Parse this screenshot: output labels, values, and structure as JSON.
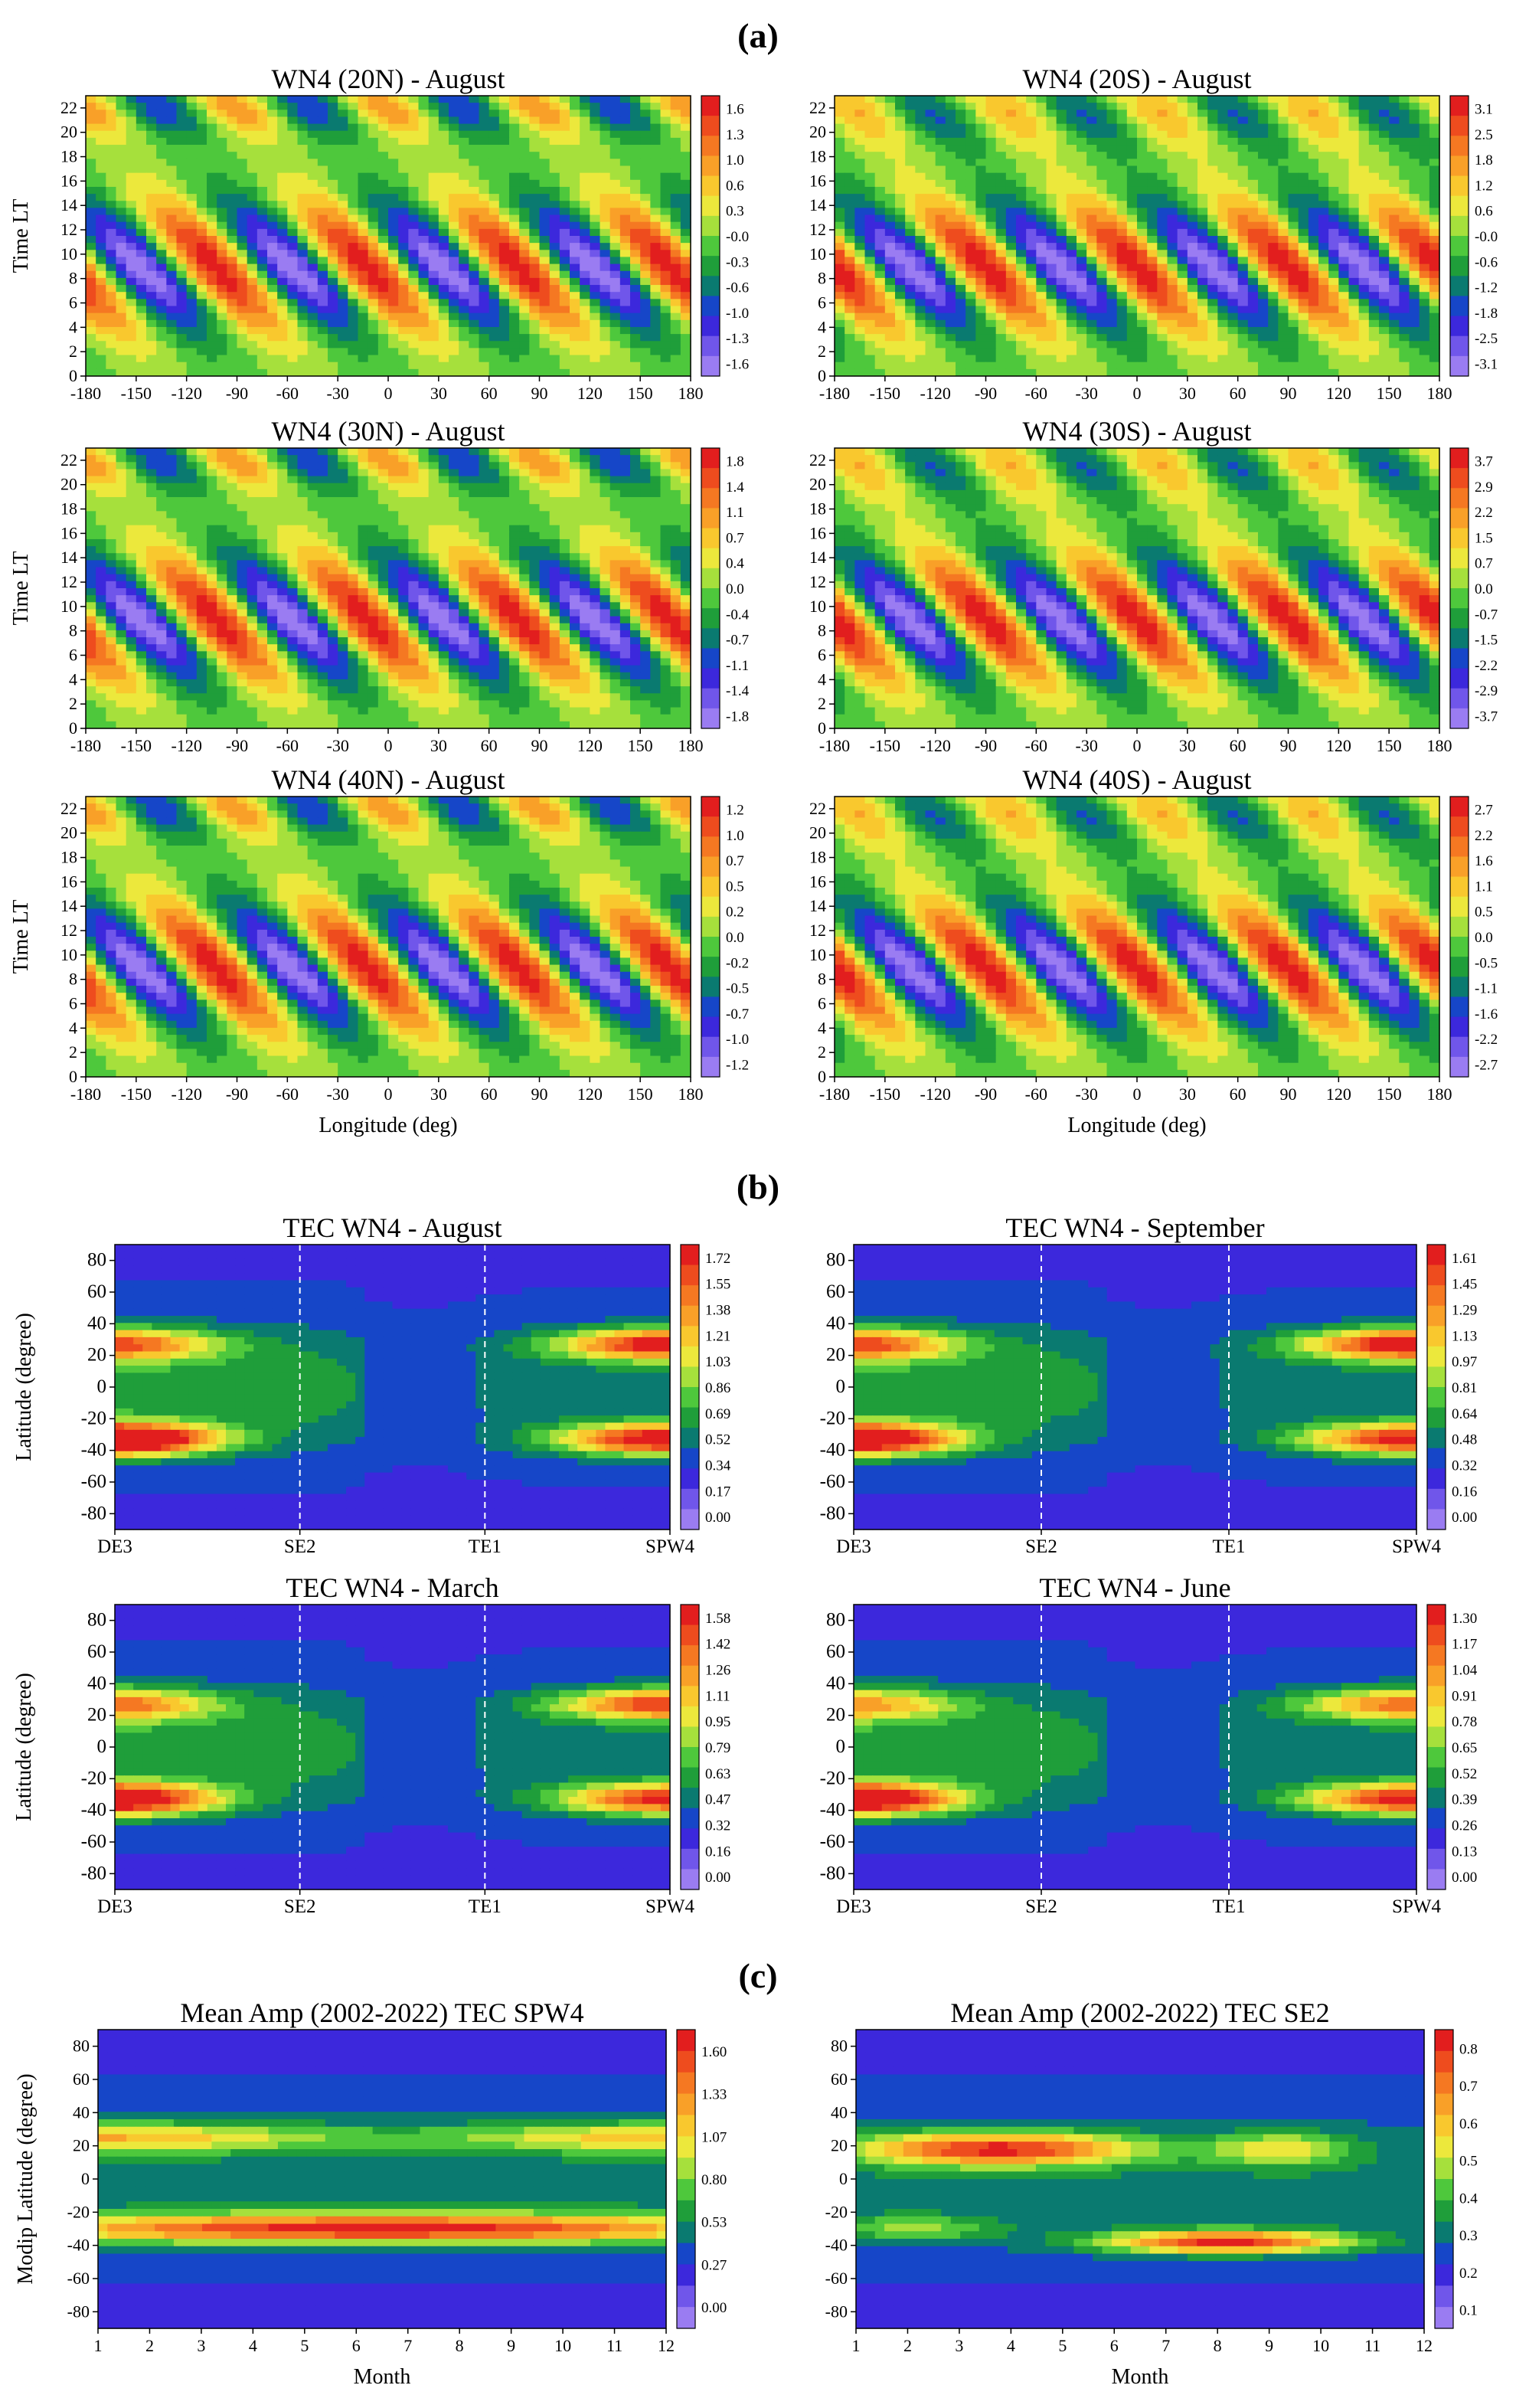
{
  "sections": {
    "a": "(a)",
    "b": "(b)",
    "c": "(c)"
  },
  "palette": [
    "#9a7cf2",
    "#7056ea",
    "#3c28dc",
    "#1646c8",
    "#0a7a70",
    "#1f9e3a",
    "#4ec83c",
    "#a6e03c",
    "#ece83c",
    "#f9c82e",
    "#f9a028",
    "#f57822",
    "#ee4c1e",
    "#e21e1e"
  ],
  "contour_line_color": "#000000",
  "zero_line_color": "#ffffff",
  "chart_data": [
    {
      "id": "a1",
      "type": "heatmap",
      "title": "WN4 (20N) - August",
      "ylabel": "Time LT",
      "xlabel": "",
      "xlim": [
        -180,
        180
      ],
      "ylim": [
        0,
        23
      ],
      "xticks": [
        "-180",
        "-150",
        "-120",
        "-90",
        "-60",
        "-30",
        "0",
        "30",
        "60",
        "90",
        "120",
        "150",
        "180"
      ],
      "yticks": [
        "0",
        "2",
        "4",
        "6",
        "8",
        "10",
        "12",
        "14",
        "16",
        "18",
        "20",
        "22"
      ],
      "colorbar": [
        "1.6",
        "1.3",
        "1.0",
        "0.6",
        "0.3",
        "-0.0",
        "-0.3",
        "-0.6",
        "-1.0",
        "-1.3",
        "-1.6"
      ]
    },
    {
      "id": "a2",
      "type": "heatmap",
      "title": "WN4 (20S) - August",
      "ylabel": "",
      "xlabel": "",
      "xlim": [
        -180,
        180
      ],
      "ylim": [
        0,
        23
      ],
      "xticks": [
        "-180",
        "-150",
        "-120",
        "-90",
        "-60",
        "-30",
        "0",
        "30",
        "60",
        "90",
        "120",
        "150",
        "180"
      ],
      "yticks": [
        "0",
        "2",
        "4",
        "6",
        "8",
        "10",
        "12",
        "14",
        "16",
        "18",
        "20",
        "22"
      ],
      "colorbar": [
        "3.1",
        "2.5",
        "1.8",
        "1.2",
        "0.6",
        "-0.0",
        "-0.6",
        "-1.2",
        "-1.8",
        "-2.5",
        "-3.1"
      ]
    },
    {
      "id": "a3",
      "type": "heatmap",
      "title": "WN4 (30N) - August",
      "ylabel": "Time LT",
      "xlabel": "",
      "xlim": [
        -180,
        180
      ],
      "ylim": [
        0,
        23
      ],
      "xticks": [
        "-180",
        "-150",
        "-120",
        "-90",
        "-60",
        "-30",
        "0",
        "30",
        "60",
        "90",
        "120",
        "150",
        "180"
      ],
      "yticks": [
        "0",
        "2",
        "4",
        "6",
        "8",
        "10",
        "12",
        "14",
        "16",
        "18",
        "20",
        "22"
      ],
      "colorbar": [
        "1.8",
        "1.4",
        "1.1",
        "0.7",
        "0.4",
        "0.0",
        "-0.4",
        "-0.7",
        "-1.1",
        "-1.4",
        "-1.8"
      ]
    },
    {
      "id": "a4",
      "type": "heatmap",
      "title": "WN4 (30S) - August",
      "ylabel": "",
      "xlabel": "",
      "xlim": [
        -180,
        180
      ],
      "ylim": [
        0,
        23
      ],
      "xticks": [
        "-180",
        "-150",
        "-120",
        "-90",
        "-60",
        "-30",
        "0",
        "30",
        "60",
        "90",
        "120",
        "150",
        "180"
      ],
      "yticks": [
        "0",
        "2",
        "4",
        "6",
        "8",
        "10",
        "12",
        "14",
        "16",
        "18",
        "20",
        "22"
      ],
      "colorbar": [
        "3.7",
        "2.9",
        "2.2",
        "1.5",
        "0.7",
        "0.0",
        "-0.7",
        "-1.5",
        "-2.2",
        "-2.9",
        "-3.7"
      ]
    },
    {
      "id": "a5",
      "type": "heatmap",
      "title": "WN4 (40N) - August",
      "ylabel": "Time LT",
      "xlabel": "Longitude (deg)",
      "xlim": [
        -180,
        180
      ],
      "ylim": [
        0,
        23
      ],
      "xticks": [
        "-180",
        "-150",
        "-120",
        "-90",
        "-60",
        "-30",
        "0",
        "30",
        "60",
        "90",
        "120",
        "150",
        "180"
      ],
      "yticks": [
        "0",
        "2",
        "4",
        "6",
        "8",
        "10",
        "12",
        "14",
        "16",
        "18",
        "20",
        "22"
      ],
      "colorbar": [
        "1.2",
        "1.0",
        "0.7",
        "0.5",
        "0.2",
        "0.0",
        "-0.2",
        "-0.5",
        "-0.7",
        "-1.0",
        "-1.2"
      ]
    },
    {
      "id": "a6",
      "type": "heatmap",
      "title": "WN4 (40S) - August",
      "ylabel": "",
      "xlabel": "Longitude (deg)",
      "xlim": [
        -180,
        180
      ],
      "ylim": [
        0,
        23
      ],
      "xticks": [
        "-180",
        "-150",
        "-120",
        "-90",
        "-60",
        "-30",
        "0",
        "30",
        "60",
        "90",
        "120",
        "150",
        "180"
      ],
      "yticks": [
        "0",
        "2",
        "4",
        "6",
        "8",
        "10",
        "12",
        "14",
        "16",
        "18",
        "20",
        "22"
      ],
      "colorbar": [
        "2.7",
        "2.2",
        "1.6",
        "1.1",
        "0.5",
        "0.0",
        "-0.5",
        "-1.1",
        "-1.6",
        "-2.2",
        "-2.7"
      ]
    },
    {
      "id": "b1",
      "type": "heatmap",
      "title": "TEC WN4 - August",
      "ylabel": "Latitude (degree)",
      "xlabel": "",
      "xticks": [
        "DE3",
        "SE2",
        "TE1",
        "SPW4"
      ],
      "yticks": [
        "-80",
        "-60",
        "-40",
        "-20",
        "0",
        "20",
        "40",
        "60",
        "80"
      ],
      "ylim": [
        -90,
        90
      ],
      "colorbar": [
        "1.72",
        "1.55",
        "1.38",
        "1.21",
        "1.03",
        "0.86",
        "0.69",
        "0.52",
        "0.34",
        "0.17",
        "0.00"
      ]
    },
    {
      "id": "b2",
      "type": "heatmap",
      "title": "TEC WN4 - September",
      "ylabel": "",
      "xlabel": "",
      "xticks": [
        "DE3",
        "SE2",
        "TE1",
        "SPW4"
      ],
      "yticks": [
        "-80",
        "-60",
        "-40",
        "-20",
        "0",
        "20",
        "40",
        "60",
        "80"
      ],
      "ylim": [
        -90,
        90
      ],
      "colorbar": [
        "1.61",
        "1.45",
        "1.29",
        "1.13",
        "0.97",
        "0.81",
        "0.64",
        "0.48",
        "0.32",
        "0.16",
        "0.00"
      ]
    },
    {
      "id": "b3",
      "type": "heatmap",
      "title": "TEC WN4 - March",
      "ylabel": "Latitude (degree)",
      "xlabel": "",
      "xticks": [
        "DE3",
        "SE2",
        "TE1",
        "SPW4"
      ],
      "yticks": [
        "-80",
        "-60",
        "-40",
        "-20",
        "0",
        "20",
        "40",
        "60",
        "80"
      ],
      "ylim": [
        -90,
        90
      ],
      "colorbar": [
        "1.58",
        "1.42",
        "1.26",
        "1.11",
        "0.95",
        "0.79",
        "0.63",
        "0.47",
        "0.32",
        "0.16",
        "0.00"
      ]
    },
    {
      "id": "b4",
      "type": "heatmap",
      "title": "TEC WN4 - June",
      "ylabel": "",
      "xlabel": "",
      "xticks": [
        "DE3",
        "SE2",
        "TE1",
        "SPW4"
      ],
      "yticks": [
        "-80",
        "-60",
        "-40",
        "-20",
        "0",
        "20",
        "40",
        "60",
        "80"
      ],
      "ylim": [
        -90,
        90
      ],
      "colorbar": [
        "1.30",
        "1.17",
        "1.04",
        "0.91",
        "0.78",
        "0.65",
        "0.52",
        "0.39",
        "0.26",
        "0.13",
        "0.00"
      ]
    },
    {
      "id": "c1",
      "type": "heatmap",
      "title": "Mean Amp (2002-2022) TEC SPW4",
      "ylabel": "Modip Latitude (degree)",
      "xlabel": "Month",
      "xlim": [
        1,
        12
      ],
      "xticks": [
        "1",
        "2",
        "3",
        "4",
        "5",
        "6",
        "7",
        "8",
        "9",
        "10",
        "11",
        "12"
      ],
      "yticks": [
        "-80",
        "-60",
        "-40",
        "-20",
        "0",
        "20",
        "40",
        "60",
        "80"
      ],
      "ylim": [
        -90,
        90
      ],
      "colorbar": [
        "1.60",
        "1.33",
        "1.07",
        "0.80",
        "0.53",
        "0.27",
        "0.00"
      ]
    },
    {
      "id": "c2",
      "type": "heatmap",
      "title": "Mean Amp (2002-2022) TEC SE2",
      "ylabel": "",
      "xlabel": "Month",
      "xlim": [
        1,
        12
      ],
      "xticks": [
        "1",
        "2",
        "3",
        "4",
        "5",
        "6",
        "7",
        "8",
        "9",
        "10",
        "11",
        "12"
      ],
      "yticks": [
        "-80",
        "-60",
        "-40",
        "-20",
        "0",
        "20",
        "40",
        "60",
        "80"
      ],
      "ylim": [
        -90,
        90
      ],
      "colorbar": [
        "0.8",
        "0.7",
        "0.6",
        "0.5",
        "0.4",
        "0.3",
        "0.2",
        "0.1"
      ]
    }
  ]
}
